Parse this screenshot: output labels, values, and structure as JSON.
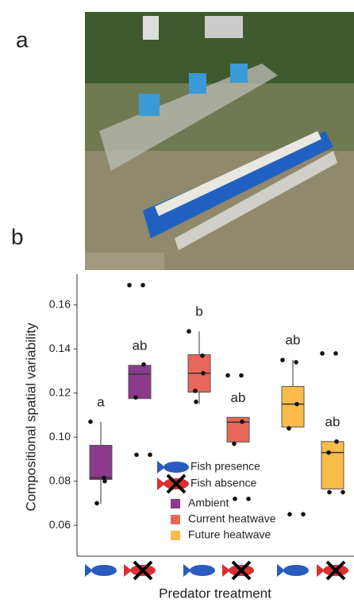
{
  "chart_data": {
    "type": "box",
    "panel_labels": [
      "a",
      "b"
    ],
    "y_label": "Compositional spatial variability",
    "x_label": "Predator treatment",
    "categories": [
      null,
      null,
      null,
      null,
      null,
      null
    ],
    "ylim": [
      0.046,
      0.174
    ],
    "yticks": [
      0.06,
      0.08,
      {
        "value": 0.1,
        "label": "0.10"
      },
      0.12,
      0.14,
      0.16
    ],
    "boxes": [
      {
        "low": 0.0697,
        "q1": 0.0808,
        "median": 0.0815,
        "q3": 0.0963,
        "high": 0.107,
        "color": "#8b3a8c",
        "letter": "a",
        "points": [
          0.107,
          0.0815,
          0.08,
          0.07
        ]
      },
      {
        "low": 0.1175,
        "q1": 0.1175,
        "median": 0.1286,
        "q3": 0.1326,
        "high": 0.1326,
        "color": "#8b3a8c",
        "letter": "ab",
        "points": [
          0.169,
          0.169,
          0.133,
          0.118,
          0.092,
          0.092
        ]
      },
      {
        "low": 0.115,
        "q1": 0.1204,
        "median": 0.129,
        "q3": 0.1374,
        "high": 0.148,
        "color": "#e8675a",
        "letter": "b",
        "points": [
          0.148,
          0.137,
          0.129,
          0.121,
          0.116
        ]
      },
      {
        "low": 0.0978,
        "q1": 0.0978,
        "median": 0.1068,
        "q3": 0.109,
        "high": 0.109,
        "color": "#e8675a",
        "letter": "ab",
        "points": [
          0.128,
          0.128,
          0.107,
          0.097,
          0.072,
          0.072
        ]
      },
      {
        "low": 0.1046,
        "q1": 0.1046,
        "median": 0.115,
        "q3": 0.123,
        "high": 0.135,
        "color": "#f9bb4a",
        "letter": "ab",
        "points": [
          0.135,
          0.134,
          0.115,
          0.104,
          0.065,
          0.065
        ]
      },
      {
        "low": 0.0765,
        "q1": 0.0765,
        "median": 0.093,
        "q3": 0.098,
        "high": 0.098,
        "color": "#f9bb4a",
        "letter": "ab",
        "points": [
          0.138,
          0.138,
          0.098,
          0.093,
          0.075,
          0.075
        ]
      }
    ],
    "fish_legend": [
      {
        "name": "Fish presence",
        "color": "#2a5bbf"
      },
      {
        "name": "Fish absence",
        "color": "#d93030"
      }
    ],
    "series": [
      {
        "name": "Ambient",
        "color": "#8b3a8c"
      },
      {
        "name": "Current heatwave",
        "color": "#e8675a"
      },
      {
        "name": "Future heatwave",
        "color": "#f9bb4a"
      }
    ]
  }
}
